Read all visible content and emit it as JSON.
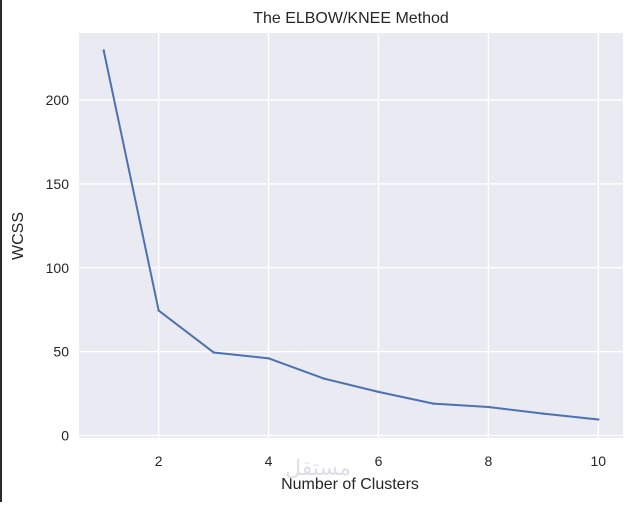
{
  "chart_data": {
    "type": "line",
    "title": "The ELBOW/KNEE Method",
    "xlabel": "Number of Clusters",
    "ylabel": "WCSS",
    "x": [
      1,
      2,
      3,
      4,
      5,
      6,
      7,
      8,
      9,
      10
    ],
    "series": [
      {
        "values": [
          229.5,
          74.5,
          49.5,
          46,
          34,
          26,
          19,
          17,
          13,
          9.5
        ]
      }
    ],
    "xticks": [
      2,
      4,
      6,
      8,
      10
    ],
    "yticks": [
      0,
      50,
      100,
      150,
      200
    ],
    "xlim": [
      0.55,
      10.45
    ],
    "ylim": [
      -1.5,
      240
    ],
    "grid": true,
    "colors": {
      "plot_background": "#eaeaf2",
      "grid": "#ffffff",
      "line": "#4c72b0",
      "text": "#262626"
    }
  },
  "watermark": {
    "text": "مستقل"
  }
}
